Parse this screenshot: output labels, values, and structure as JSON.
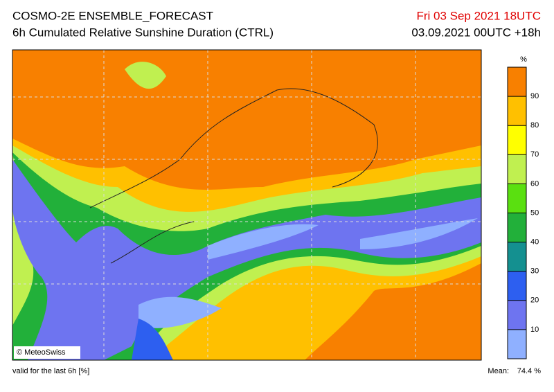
{
  "header": {
    "title": "COSMO-2E ENSEMBLE_FORECAST",
    "subtitle": "6h Cumulated Relative Sunshine Duration (CTRL)",
    "valid_time": "Fri 03 Sep 2021 18UTC",
    "run": "03.09.2021 00UTC +18h"
  },
  "map": {
    "copyright": "© MeteoSwiss"
  },
  "colorbar": {
    "unit": "%",
    "range": [
      0,
      100
    ],
    "ticks": [
      10,
      20,
      30,
      40,
      50,
      60,
      70,
      80,
      90
    ],
    "colors": [
      "#8fb0ff",
      "#6e74f0",
      "#2d5ff0",
      "#149090",
      "#22b03a",
      "#5ae010",
      "#c0f050",
      "#ffff00",
      "#ffc000",
      "#f88000"
    ]
  },
  "footer": {
    "note": "valid for the last 6h [%]",
    "mean_label": "Mean:",
    "mean_value": "74.4 %"
  }
}
